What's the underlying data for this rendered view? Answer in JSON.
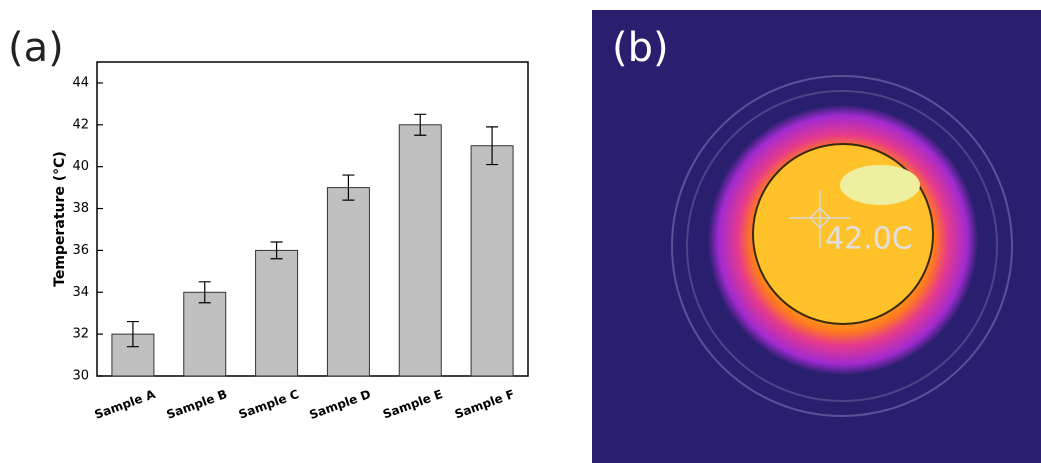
{
  "chart_data": {
    "type": "bar",
    "panel_label": "(a)",
    "y_label": "Temperature (°C)",
    "categories": [
      "Sample A",
      "Sample B",
      "Sample C",
      "Sample D",
      "Sample E",
      "Sample F"
    ],
    "values": [
      32,
      34,
      36,
      39,
      42,
      41
    ],
    "errors": [
      0.6,
      0.5,
      0.4,
      0.6,
      0.5,
      0.9
    ],
    "color": "#c0c0c0",
    "ylim": [
      30,
      45
    ],
    "yticks": [
      30,
      32,
      34,
      36,
      38,
      40,
      42,
      44
    ]
  },
  "image": {
    "panel_label": "(b)",
    "reading": "42.0C"
  }
}
